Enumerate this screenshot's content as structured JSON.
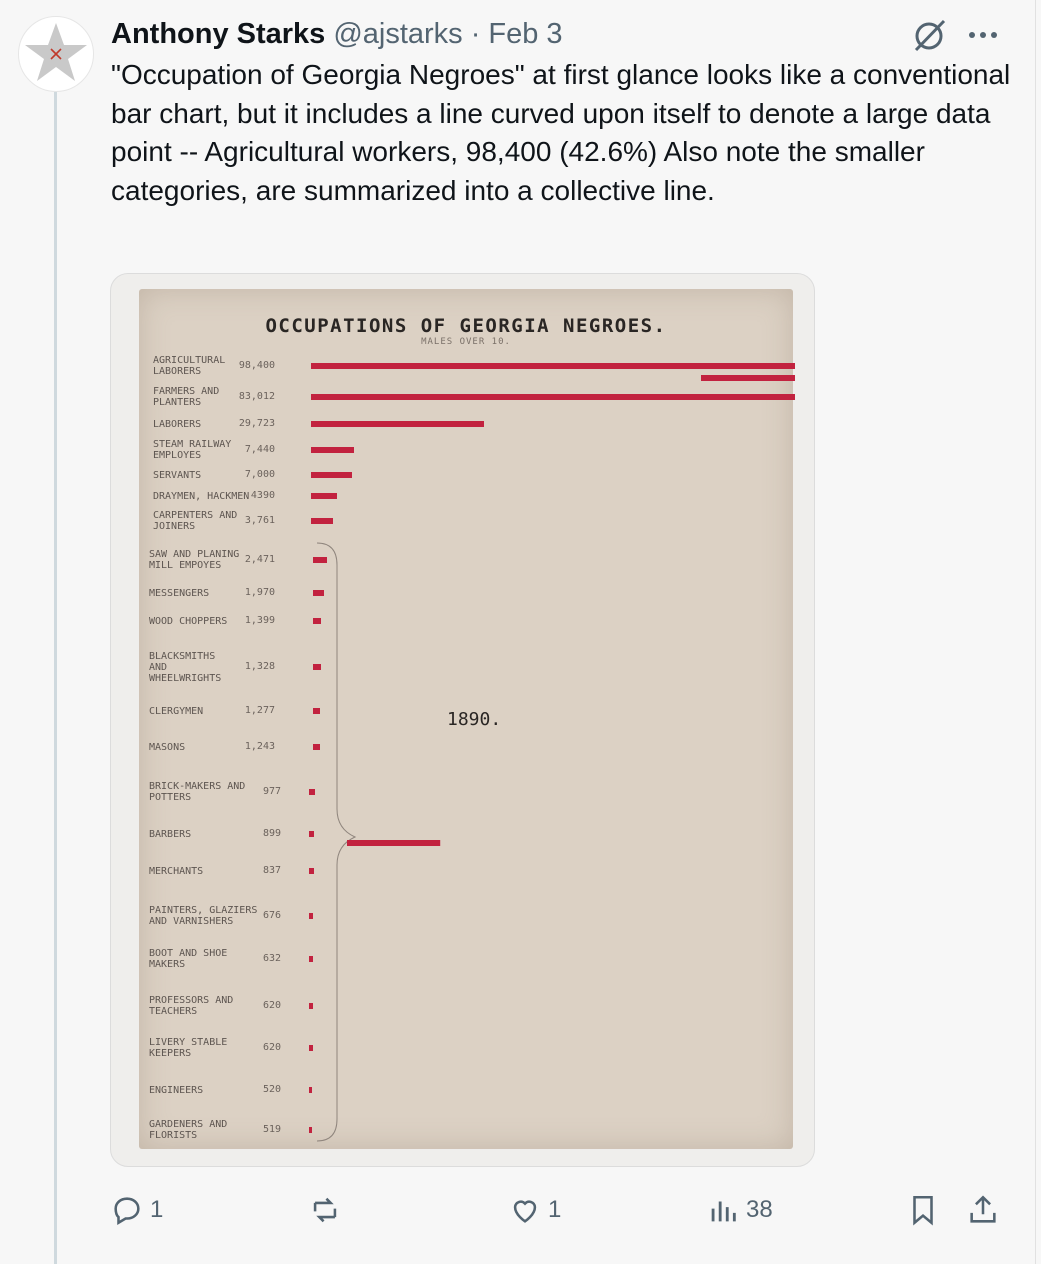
{
  "tweet": {
    "author_name": "Anthony Starks",
    "handle": "@ajstarks",
    "separator": "·",
    "date": "Feb 3",
    "text": "\"Occupation of Georgia Negroes\" at first glance looks like a conventional bar chart, but it includes a line curved upon itself to denote a large data point -- Agricultural workers, 98,400 (42.6%) Also note the smaller categories, are summarized into a collective line."
  },
  "icons": {
    "avatar": "star-avatar-icon",
    "grok": "grok-icon",
    "more": "more-icon",
    "reply": "reply-icon",
    "repost": "repost-icon",
    "like": "like-icon",
    "views": "views-icon",
    "bookmark": "bookmark-icon",
    "share": "share-icon"
  },
  "actions": {
    "reply_count": "1",
    "like_count": "1",
    "view_count": "38"
  },
  "colors": {
    "bar": "#c2223f",
    "poster_bg": "#dcd1c4"
  },
  "chart_data": {
    "type": "bar",
    "title": "OCCUPATIONS OF GEORGIA NEGROES.",
    "subtitle": "MALES OVER 10.",
    "annotation": "1890.",
    "categories": [
      "AGRICULTURAL\nLABORERS",
      "FARMERS AND\nPLANTERS",
      "LABORERS",
      "STEAM RAILWAY\nEMPLOYES",
      "SERVANTS",
      "DRAYMEN, HACKMEN",
      "CARPENTERS AND\nJOINERS",
      "SAW AND PLANING\nMILL EMPOYES",
      "MESSENGERS",
      "WOOD CHOPPERS",
      "BLACKSMITHS\nAND\nWHEELWRIGHTS",
      "CLERGYMEN",
      "MASONS",
      "BRICK-MAKERS AND\nPOTTERS",
      "BARBERS",
      "MERCHANTS",
      "PAINTERS, GLAZIERS\nAND VARNISHERS",
      "BOOT AND SHOE\nMAKERS",
      "PROFESSORS AND\nTEACHERS",
      "LIVERY STABLE\nKEEPERS",
      "ENGINEERS",
      "GARDENERS AND\nFLORISTS"
    ],
    "value_labels": [
      "98,400",
      "83,012",
      "29,723",
      "7,440",
      "7,000",
      "4390",
      "3,761",
      "2,471",
      "1,970",
      "1,399",
      "1,328",
      "1,277",
      "1,243",
      "977",
      "899",
      "837",
      "676",
      "632",
      "620",
      "620",
      "520",
      "519"
    ],
    "values": [
      98400,
      83012,
      29723,
      7440,
      7000,
      4390,
      3761,
      2471,
      1970,
      1399,
      1328,
      1277,
      1243,
      977,
      899,
      837,
      676,
      632,
      620,
      620,
      520,
      519
    ],
    "grouped_summary": "categories from SAW AND PLANING MILL EMPOYES to GARDENERS AND FLORISTS are bracketed and summarized into one collective bar",
    "note": "the AGRICULTURAL LABORERS bar wraps back on itself because it exceeds the chart width"
  }
}
